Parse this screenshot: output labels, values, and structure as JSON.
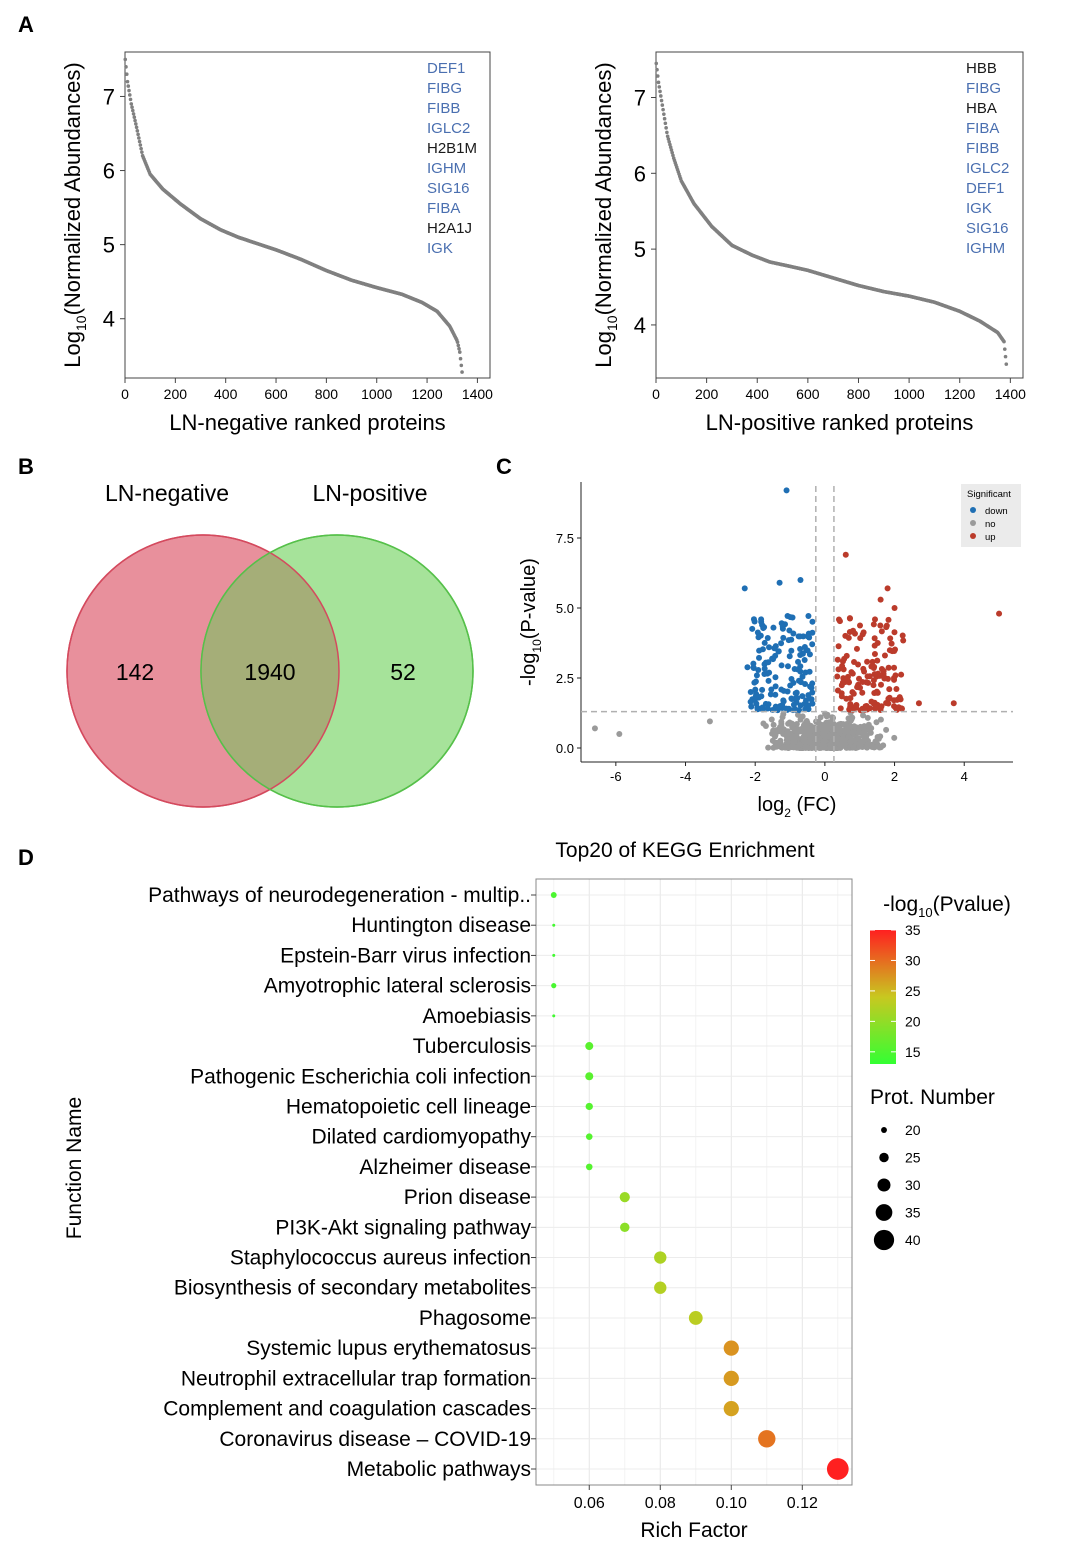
{
  "panel_labels": {
    "a": "A",
    "b": "B",
    "c": "C",
    "d": "D"
  },
  "colors": {
    "rank_curve": "#808080",
    "highlight_protein": "#4a6fb0",
    "other_protein": "#1a1a1a",
    "venn_left_fill": "#e8909c",
    "venn_left_stroke": "#d44a5e",
    "venn_right_fill": "#a6e39a",
    "venn_right_stroke": "#56c04a",
    "venn_overlap": "#a5ae78",
    "volcano_down": "#1f6fb4",
    "volcano_no": "#9a9a9a",
    "volcano_up": "#bb3b2b",
    "kegg_low": "#33ff33",
    "kegg_mid": "#c8c820",
    "kegg_high": "#ff2020"
  },
  "chart_data": [
    {
      "id": "rank_negative",
      "type": "scatter",
      "xlabel": "LN-negative ranked proteins",
      "ylabel": "Log10(Normalized Abundances)",
      "ylabel_main": "Log",
      "ylabel_sub": "10",
      "ylabel_rest": "(Normalized Abundances)",
      "xlim": [
        0,
        1450
      ],
      "ylim": [
        3.2,
        7.6
      ],
      "xticks": [
        0,
        200,
        400,
        600,
        800,
        1000,
        1200,
        1400
      ],
      "yticks": [
        4,
        5,
        6,
        7
      ],
      "n_proteins": 1340,
      "curve": [
        [
          1,
          7.5
        ],
        [
          10,
          7.2
        ],
        [
          25,
          6.9
        ],
        [
          45,
          6.6
        ],
        [
          70,
          6.2
        ],
        [
          100,
          5.95
        ],
        [
          150,
          5.75
        ],
        [
          220,
          5.55
        ],
        [
          300,
          5.35
        ],
        [
          380,
          5.2
        ],
        [
          450,
          5.1
        ],
        [
          520,
          5.02
        ],
        [
          600,
          4.93
        ],
        [
          700,
          4.8
        ],
        [
          800,
          4.65
        ],
        [
          900,
          4.52
        ],
        [
          1000,
          4.42
        ],
        [
          1100,
          4.33
        ],
        [
          1180,
          4.22
        ],
        [
          1240,
          4.1
        ],
        [
          1290,
          3.9
        ],
        [
          1320,
          3.7
        ],
        [
          1330,
          3.55
        ],
        [
          1340,
          3.25
        ]
      ],
      "proteins": [
        {
          "name": "DEF1",
          "highlight": true
        },
        {
          "name": "FIBG",
          "highlight": true
        },
        {
          "name": "FIBB",
          "highlight": true
        },
        {
          "name": "IGLC2",
          "highlight": true
        },
        {
          "name": "H2B1M",
          "highlight": false
        },
        {
          "name": "IGHM",
          "highlight": true
        },
        {
          "name": "SIG16",
          "highlight": true
        },
        {
          "name": "FIBA",
          "highlight": true
        },
        {
          "name": "H2A1J",
          "highlight": false
        },
        {
          "name": "IGK",
          "highlight": true
        }
      ]
    },
    {
      "id": "rank_positive",
      "type": "scatter",
      "xlabel": "LN-positive ranked proteins",
      "ylabel": "Log10(Normalized Abundances)",
      "ylabel_main": "Log",
      "ylabel_sub": "10",
      "ylabel_rest": "(Normalized Abundances)",
      "xlim": [
        0,
        1450
      ],
      "ylim": [
        3.3,
        7.6
      ],
      "xticks": [
        0,
        200,
        400,
        600,
        800,
        1000,
        1200,
        1400
      ],
      "yticks": [
        4,
        5,
        6,
        7
      ],
      "n_proteins": 1385,
      "curve": [
        [
          1,
          7.45
        ],
        [
          10,
          7.2
        ],
        [
          25,
          6.9
        ],
        [
          45,
          6.5
        ],
        [
          70,
          6.2
        ],
        [
          100,
          5.9
        ],
        [
          150,
          5.6
        ],
        [
          220,
          5.3
        ],
        [
          300,
          5.05
        ],
        [
          380,
          4.92
        ],
        [
          450,
          4.83
        ],
        [
          520,
          4.78
        ],
        [
          600,
          4.72
        ],
        [
          700,
          4.62
        ],
        [
          800,
          4.52
        ],
        [
          900,
          4.44
        ],
        [
          1000,
          4.38
        ],
        [
          1100,
          4.3
        ],
        [
          1200,
          4.18
        ],
        [
          1280,
          4.05
        ],
        [
          1350,
          3.9
        ],
        [
          1375,
          3.78
        ],
        [
          1385,
          3.45
        ]
      ],
      "proteins": [
        {
          "name": "HBB",
          "highlight": false
        },
        {
          "name": "FIBG",
          "highlight": true
        },
        {
          "name": "HBA",
          "highlight": false
        },
        {
          "name": "FIBA",
          "highlight": true
        },
        {
          "name": "FIBB",
          "highlight": true
        },
        {
          "name": "IGLC2",
          "highlight": true
        },
        {
          "name": "DEF1",
          "highlight": true
        },
        {
          "name": "IGK",
          "highlight": true
        },
        {
          "name": "SIG16",
          "highlight": true
        },
        {
          "name": "IGHM",
          "highlight": true
        }
      ]
    },
    {
      "id": "venn",
      "type": "venn",
      "sets": [
        "LN-negative",
        "LN-positive"
      ],
      "only_left": "142",
      "overlap": "1940",
      "only_right": "52"
    },
    {
      "id": "volcano",
      "type": "scatter",
      "xlabel": "log2 (FC)",
      "xlabel_main": "log",
      "xlabel_sub": "2",
      "xlabel_rest": " (FC)",
      "ylabel": "-log10(P-value)",
      "ylabel_main": "-log",
      "ylabel_sub": "10",
      "ylabel_rest": "(P-value)",
      "xlim": [
        -7,
        5.4
      ],
      "ylim": [
        -0.5,
        9.5
      ],
      "xticks": [
        -6,
        -4,
        -2,
        0,
        2,
        4
      ],
      "yticks": [
        0.0,
        2.5,
        5.0,
        7.5
      ],
      "ytick_labels": [
        "0.0",
        "2.5",
        "5.0",
        "7.5"
      ],
      "vlines": [
        -0.26,
        0.26
      ],
      "hline": 1.3,
      "legend_title": "Significant",
      "legend": [
        {
          "key": "down",
          "label": "down"
        },
        {
          "key": "no",
          "label": "no"
        },
        {
          "key": "up",
          "label": "up"
        }
      ],
      "notable_points": [
        {
          "group": "down",
          "x": -1.1,
          "y": 9.2
        },
        {
          "group": "down",
          "x": -2.3,
          "y": 5.7
        },
        {
          "group": "down",
          "x": -1.3,
          "y": 5.9
        },
        {
          "group": "down",
          "x": -0.7,
          "y": 6.0
        },
        {
          "group": "up",
          "x": 0.6,
          "y": 6.9
        },
        {
          "group": "up",
          "x": 5.0,
          "y": 4.8
        },
        {
          "group": "up",
          "x": 1.8,
          "y": 5.7
        },
        {
          "group": "up",
          "x": 2.0,
          "y": 5.0
        },
        {
          "group": "up",
          "x": 1.6,
          "y": 5.3
        },
        {
          "group": "up",
          "x": 3.7,
          "y": 1.6
        },
        {
          "group": "up",
          "x": 2.7,
          "y": 1.6
        },
        {
          "group": "no",
          "x": -6.6,
          "y": 0.7
        },
        {
          "group": "no",
          "x": -5.9,
          "y": 0.5
        },
        {
          "group": "no",
          "x": -3.3,
          "y": 0.95
        }
      ]
    },
    {
      "id": "kegg",
      "type": "scatter",
      "title": "Top20 of KEGG Enrichment",
      "xlabel": "Rich Factor",
      "ylabel": "Function Name",
      "xlim": [
        0.045,
        0.134
      ],
      "xticks": [
        0.06,
        0.08,
        0.1,
        0.12
      ],
      "xtick_labels": [
        "0.06",
        "0.08",
        "0.10",
        "0.12"
      ],
      "color_legend_title": "-log10(Pvalue)",
      "color_main": "-log",
      "color_sub": "10",
      "color_rest": "(Pvalue)",
      "color_range": [
        13,
        35
      ],
      "color_ticks": [
        15,
        20,
        25,
        30,
        35
      ],
      "size_legend_title": "Prot. Number",
      "size_ticks": [
        20,
        25,
        30,
        35,
        40
      ],
      "terms": [
        {
          "name": "Pathways of neurodegeneration - multip..",
          "rich": 0.05,
          "neglogp": 14.8,
          "count": 20
        },
        {
          "name": "Huntington disease",
          "rich": 0.05,
          "neglogp": 14.2,
          "count": 16
        },
        {
          "name": "Epstein-Barr virus infection",
          "rich": 0.05,
          "neglogp": 14.0,
          "count": 16
        },
        {
          "name": "Amyotrophic lateral sclerosis",
          "rich": 0.05,
          "neglogp": 14.6,
          "count": 19
        },
        {
          "name": "Amoebiasis",
          "rich": 0.05,
          "neglogp": 14.0,
          "count": 16
        },
        {
          "name": "Tuberculosis",
          "rich": 0.06,
          "neglogp": 15.8,
          "count": 23
        },
        {
          "name": "Pathogenic Escherichia coli infection",
          "rich": 0.06,
          "neglogp": 15.8,
          "count": 23
        },
        {
          "name": "Hematopoietic cell lineage",
          "rich": 0.06,
          "neglogp": 15.5,
          "count": 22
        },
        {
          "name": "Dilated cardiomyopathy",
          "rich": 0.06,
          "neglogp": 15.5,
          "count": 21
        },
        {
          "name": "Alzheimer disease",
          "rich": 0.06,
          "neglogp": 15.5,
          "count": 21
        },
        {
          "name": "Prion disease",
          "rich": 0.07,
          "neglogp": 20.5,
          "count": 26
        },
        {
          "name": "PI3K-Akt signaling pathway",
          "rich": 0.07,
          "neglogp": 19.5,
          "count": 25
        },
        {
          "name": "Staphylococcus aureus infection",
          "rich": 0.08,
          "neglogp": 22.0,
          "count": 29
        },
        {
          "name": "Biosynthesis of secondary metabolites",
          "rich": 0.08,
          "neglogp": 22.5,
          "count": 29
        },
        {
          "name": "Phagosome",
          "rich": 0.09,
          "neglogp": 23.0,
          "count": 31
        },
        {
          "name": "Systemic lupus erythematosus",
          "rich": 0.1,
          "neglogp": 27.5,
          "count": 33
        },
        {
          "name": "Neutrophil extracellular trap formation",
          "rich": 0.1,
          "neglogp": 27.0,
          "count": 33
        },
        {
          "name": "Complement and coagulation cascades",
          "rich": 0.1,
          "neglogp": 26.5,
          "count": 33
        },
        {
          "name": "Coronavirus disease – COVID-19",
          "rich": 0.11,
          "neglogp": 29.5,
          "count": 36
        },
        {
          "name": "Metabolic pathways",
          "rich": 0.13,
          "neglogp": 35.0,
          "count": 42
        }
      ]
    }
  ]
}
